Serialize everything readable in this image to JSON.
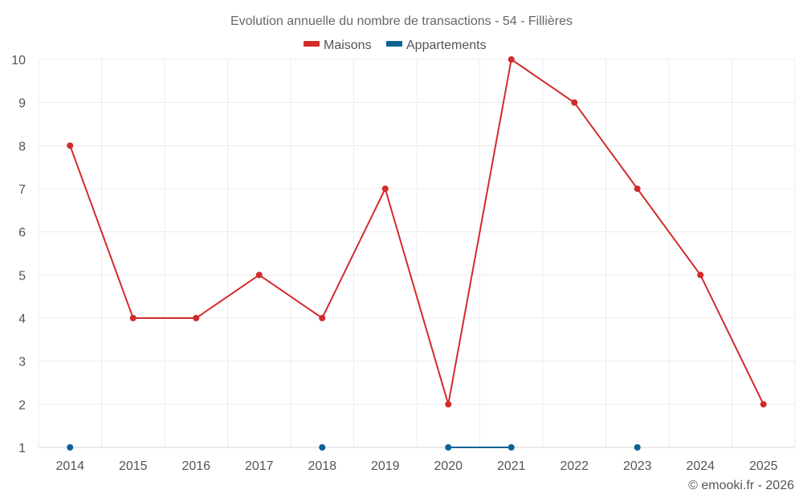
{
  "chart_data": {
    "type": "line",
    "title": "Evolution annuelle du nombre de transactions - 54 - Fillières",
    "credit": "© emooki.fr - 2026",
    "xlabel": "",
    "ylabel": "",
    "categories": [
      "2014",
      "2015",
      "2016",
      "2017",
      "2018",
      "2019",
      "2020",
      "2021",
      "2022",
      "2023",
      "2024",
      "2025"
    ],
    "ylim": [
      1,
      10
    ],
    "yticks": [
      1,
      2,
      3,
      4,
      5,
      6,
      7,
      8,
      9,
      10
    ],
    "grid": true,
    "legend_position": "top-center",
    "series": [
      {
        "name": "Maisons",
        "color": "#d22b2b",
        "values": [
          8,
          4,
          4,
          5,
          4,
          7,
          2,
          10,
          9,
          7,
          5,
          2
        ]
      },
      {
        "name": "Appartements",
        "color": "#0b6394",
        "values": [
          1,
          null,
          null,
          null,
          1,
          null,
          1,
          1,
          null,
          1,
          null,
          null
        ]
      }
    ]
  }
}
